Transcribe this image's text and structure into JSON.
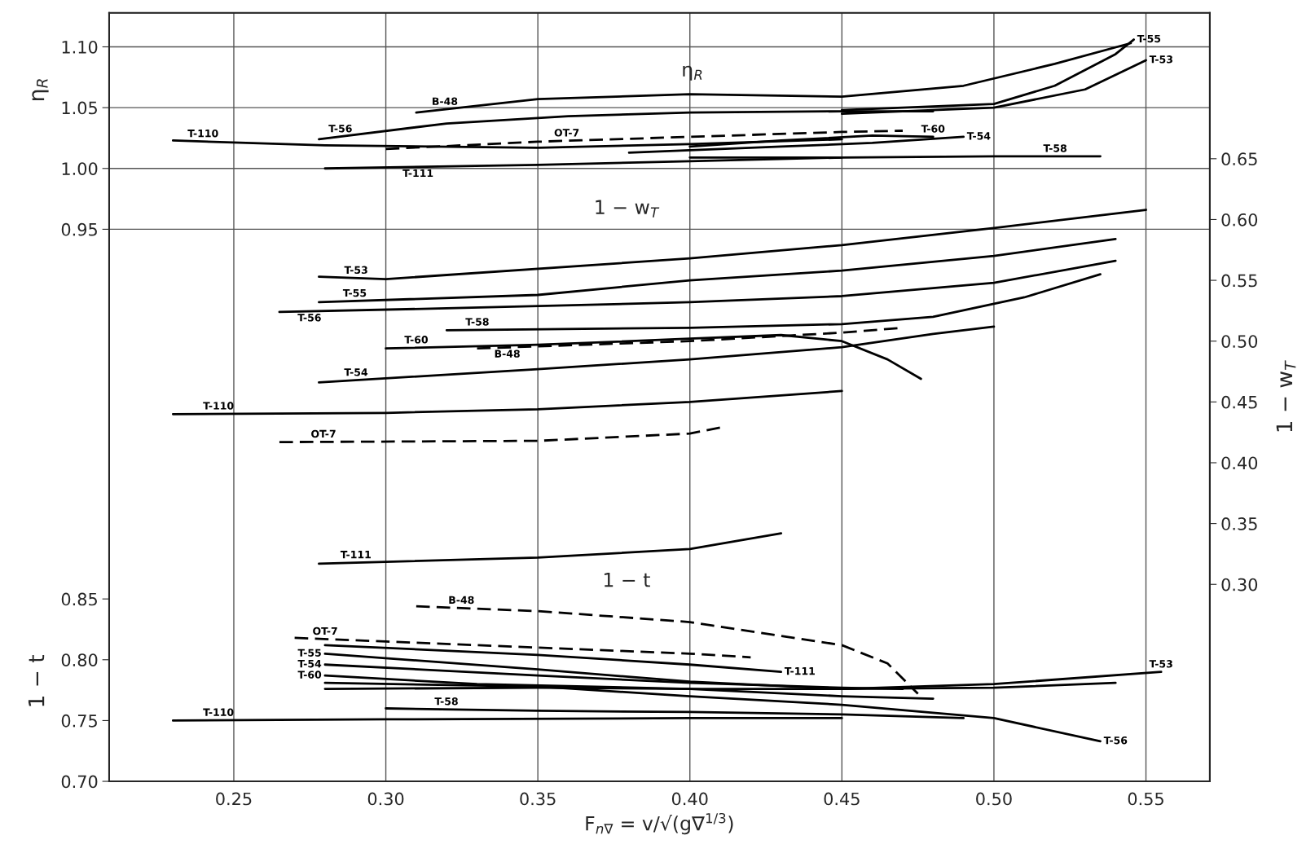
{
  "chart_data": {
    "type": "line",
    "xlabel": "F$_{n∇}$ = v/√(g∇$^{1/3}$)",
    "ylabel": "η$_{R}$",
    "y2label": "1 − w$_{T}$",
    "y3label": "1 − t",
    "xlim": [
      0.209,
      0.571
    ],
    "xticks": [
      0.25,
      {
        "value": 0.3,
        "label": "0.30"
      },
      0.35,
      {
        "value": 0.4,
        "label": "0.40"
      },
      0.45,
      {
        "value": 0.5,
        "label": "0.50"
      },
      0.55
    ],
    "ylim": [
      0.496,
      1.128
    ],
    "yticks": [
      0.95,
      {
        "value": 1.0,
        "label": "1.00"
      },
      1.05,
      {
        "value": 1.1,
        "label": "1.10"
      }
    ],
    "y2lim": [
      0.138,
      0.77
    ],
    "y2ticks": [
      {
        "value": 0.3,
        "label": "0.30"
      },
      0.35,
      {
        "value": 0.4,
        "label": "0.40"
      },
      0.45,
      {
        "value": 0.5,
        "label": "0.50"
      },
      0.55,
      {
        "value": 0.6,
        "label": "0.60"
      },
      0.65
    ],
    "y3lim": [
      0.7,
      1.332
    ],
    "y3ticks": [
      {
        "value": 0.7,
        "label": "0.70"
      },
      0.75,
      {
        "value": 0.8,
        "label": "0.80"
      },
      0.85
    ],
    "grid": true,
    "annotations": [
      "η$_{R}$",
      "1 − w$_{T}$",
      "1 − t"
    ],
    "series": [
      {
        "name": "T-110",
        "color": "#000000",
        "axis": "y",
        "x": [
          0.23,
          0.28,
          0.35,
          0.4,
          0.45
        ],
        "values": [
          1.023,
          1.019,
          1.017,
          1.02,
          1.024
        ]
      },
      {
        "name": "T-56",
        "color": "#000000",
        "axis": "y",
        "x": [
          0.278,
          0.32,
          0.36,
          0.4,
          0.45,
          0.48
        ],
        "values": [
          1.024,
          1.037,
          1.043,
          1.046,
          1.047,
          1.047
        ]
      },
      {
        "name": "B-48",
        "color": "#000000",
        "axis": "y",
        "x": [
          0.31,
          0.35,
          0.4,
          0.45,
          0.49,
          0.52,
          0.545
        ],
        "values": [
          1.046,
          1.057,
          1.061,
          1.059,
          1.068,
          1.086,
          1.103
        ]
      },
      {
        "name": "OT-7",
        "color": "#000000",
        "axis": "y",
        "line_style": "dashed",
        "x": [
          0.3,
          0.35,
          0.4,
          0.45,
          0.47
        ],
        "values": [
          1.016,
          1.022,
          1.026,
          1.03,
          1.031
        ]
      },
      {
        "name": "T-111",
        "color": "#000000",
        "axis": "y",
        "x": [
          0.28,
          0.35,
          0.4,
          0.45
        ],
        "values": [
          1.0,
          1.003,
          1.006,
          1.009
        ]
      },
      {
        "name": "T-60",
        "color": "#000000",
        "axis": "y",
        "x": [
          0.4,
          0.43,
          0.46,
          0.48
        ],
        "values": [
          1.018,
          1.023,
          1.027,
          1.026
        ]
      },
      {
        "name": "T-54",
        "color": "#000000",
        "axis": "y",
        "x": [
          0.38,
          0.43,
          0.46,
          0.49
        ],
        "values": [
          1.013,
          1.018,
          1.021,
          1.026
        ]
      },
      {
        "name": "T-58",
        "color": "#000000",
        "axis": "y",
        "x": [
          0.4,
          0.45,
          0.5,
          0.535
        ],
        "values": [
          1.009,
          1.009,
          1.01,
          1.01
        ]
      },
      {
        "name": "T-55",
        "color": "#000000",
        "axis": "y",
        "x": [
          0.45,
          0.5,
          0.52,
          0.54,
          0.546
        ],
        "values": [
          1.048,
          1.053,
          1.068,
          1.094,
          1.106
        ]
      },
      {
        "name": "T-53",
        "color": "#000000",
        "axis": "y",
        "x": [
          0.45,
          0.5,
          0.53,
          0.55
        ],
        "values": [
          1.045,
          1.05,
          1.065,
          1.089
        ]
      },
      {
        "name": "T-53",
        "color": "#000000",
        "axis": "y2",
        "x": [
          0.278,
          0.3,
          0.4,
          0.45,
          0.5,
          0.55
        ],
        "values": [
          0.553,
          0.551,
          0.568,
          0.579,
          0.593,
          0.608
        ]
      },
      {
        "name": "T-55",
        "color": "#000000",
        "axis": "y2",
        "x": [
          0.278,
          0.35,
          0.4,
          0.45,
          0.5,
          0.54
        ],
        "values": [
          0.532,
          0.538,
          0.55,
          0.558,
          0.57,
          0.584
        ]
      },
      {
        "name": "T-56",
        "color": "#000000",
        "axis": "y2",
        "x": [
          0.265,
          0.32,
          0.4,
          0.45,
          0.5,
          0.54
        ],
        "values": [
          0.524,
          0.527,
          0.532,
          0.537,
          0.548,
          0.566
        ]
      },
      {
        "name": "T-58",
        "color": "#000000",
        "axis": "y2",
        "x": [
          0.32,
          0.4,
          0.45,
          0.48,
          0.51,
          0.535
        ],
        "values": [
          0.509,
          0.511,
          0.514,
          0.52,
          0.536,
          0.555
        ]
      },
      {
        "name": "T-60",
        "color": "#000000",
        "axis": "y2",
        "x": [
          0.3,
          0.35,
          0.4,
          0.43,
          0.45,
          0.465,
          0.476
        ],
        "values": [
          0.494,
          0.497,
          0.502,
          0.505,
          0.5,
          0.485,
          0.469
        ]
      },
      {
        "name": "B-48",
        "color": "#000000",
        "axis": "y2",
        "line_style": "dashed",
        "x": [
          0.33,
          0.4,
          0.45,
          0.47
        ],
        "values": [
          0.494,
          0.5,
          0.507,
          0.511
        ]
      },
      {
        "name": "T-54",
        "color": "#000000",
        "axis": "y2",
        "x": [
          0.278,
          0.35,
          0.4,
          0.45,
          0.48,
          0.5
        ],
        "values": [
          0.466,
          0.477,
          0.485,
          0.495,
          0.506,
          0.512
        ]
      },
      {
        "name": "T-110",
        "color": "#000000",
        "axis": "y2",
        "x": [
          0.23,
          0.3,
          0.35,
          0.4,
          0.45
        ],
        "values": [
          0.44,
          0.441,
          0.444,
          0.45,
          0.459
        ]
      },
      {
        "name": "OT-7",
        "color": "#000000",
        "axis": "y2",
        "line_style": "dashed",
        "x": [
          0.265,
          0.35,
          0.4,
          0.41
        ],
        "values": [
          0.417,
          0.418,
          0.424,
          0.429
        ]
      },
      {
        "name": "T-111",
        "color": "#000000",
        "axis": "y2",
        "x": [
          0.278,
          0.35,
          0.4,
          0.43
        ],
        "values": [
          0.317,
          0.322,
          0.329,
          0.342
        ]
      },
      {
        "name": "B-48",
        "color": "#000000",
        "axis": "y3",
        "line_style": "dashed",
        "x": [
          0.31,
          0.35,
          0.4,
          0.45,
          0.465,
          0.475
        ],
        "values": [
          0.844,
          0.84,
          0.831,
          0.812,
          0.797,
          0.772
        ]
      },
      {
        "name": "OT-7",
        "color": "#000000",
        "axis": "y3",
        "line_style": "dashed",
        "x": [
          0.27,
          0.3,
          0.35,
          0.4,
          0.42
        ],
        "values": [
          0.818,
          0.815,
          0.81,
          0.805,
          0.802
        ]
      },
      {
        "name": "T-111",
        "color": "#000000",
        "axis": "y3",
        "x": [
          0.28,
          0.35,
          0.4,
          0.43
        ],
        "values": [
          0.812,
          0.804,
          0.796,
          0.79
        ]
      },
      {
        "name": "T-55",
        "color": "#000000",
        "axis": "y3",
        "x": [
          0.28,
          0.35,
          0.4,
          0.45,
          0.5,
          0.54
        ],
        "values": [
          0.805,
          0.792,
          0.782,
          0.776,
          0.777,
          0.781
        ]
      },
      {
        "name": "T-54",
        "color": "#000000",
        "axis": "y3",
        "x": [
          0.28,
          0.35,
          0.4,
          0.45,
          0.47
        ],
        "values": [
          0.796,
          0.787,
          0.781,
          0.777,
          0.776
        ]
      },
      {
        "name": "T-60",
        "color": "#000000",
        "axis": "y3",
        "x": [
          0.28,
          0.33,
          0.4,
          0.45,
          0.48
        ],
        "values": [
          0.787,
          0.78,
          0.776,
          0.77,
          0.768
        ]
      },
      {
        "name": "T-56",
        "color": "#000000",
        "axis": "y3",
        "x": [
          0.28,
          0.35,
          0.4,
          0.45,
          0.5,
          0.535
        ],
        "values": [
          0.781,
          0.778,
          0.77,
          0.763,
          0.752,
          0.733
        ]
      },
      {
        "name": "T-53",
        "color": "#000000",
        "axis": "y3",
        "x": [
          0.28,
          0.35,
          0.4,
          0.45,
          0.5,
          0.555
        ],
        "values": [
          0.776,
          0.777,
          0.776,
          0.776,
          0.78,
          0.79
        ]
      },
      {
        "name": "T-58",
        "color": "#000000",
        "axis": "y3",
        "x": [
          0.3,
          0.35,
          0.4,
          0.45,
          0.49
        ],
        "values": [
          0.76,
          0.758,
          0.757,
          0.755,
          0.752
        ]
      },
      {
        "name": "T-110",
        "color": "#000000",
        "axis": "y3",
        "x": [
          0.23,
          0.3,
          0.4,
          0.45
        ],
        "values": [
          0.75,
          0.751,
          0.752,
          0.752
        ]
      }
    ]
  }
}
